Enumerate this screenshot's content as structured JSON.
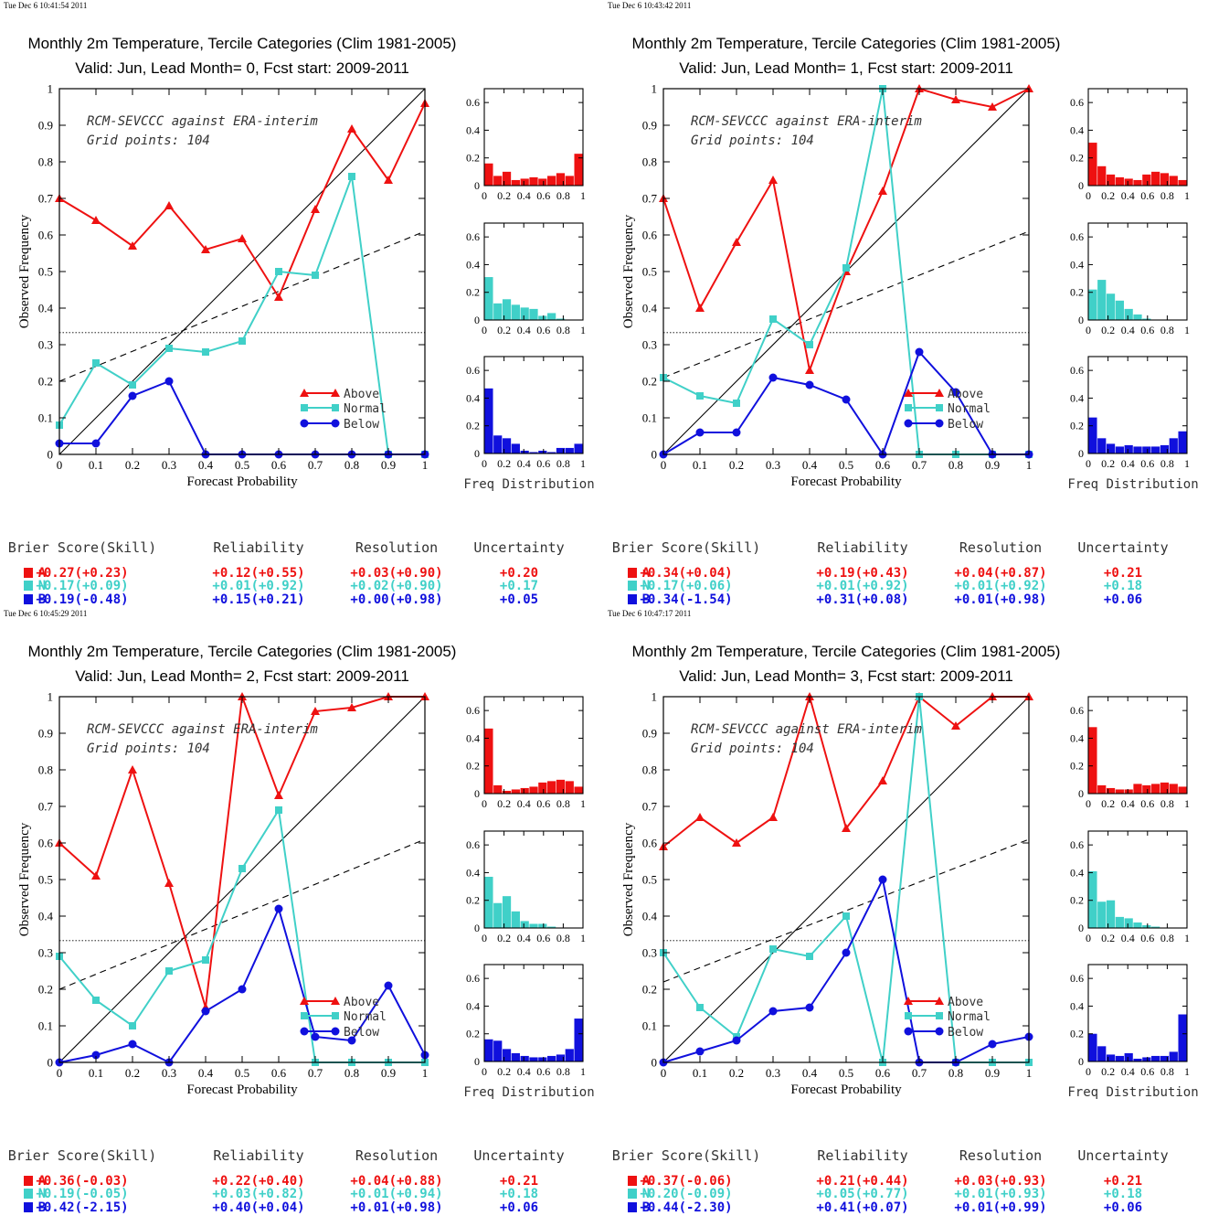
{
  "colors": {
    "above": "#ee1111",
    "normal": "#40d0c8",
    "below": "#1010dd",
    "axis": "#000000"
  },
  "common": {
    "x_axis_label": "Forecast Probability",
    "y_axis_label": "Observed Frequency",
    "freq_label": "Freq Distribution",
    "annotation_line1": "RCM-SEVCCC against ERA-interim",
    "annotation_line2": "Grid points:  104",
    "legend": [
      "Above",
      "Normal",
      "Below"
    ],
    "x_ticks": [
      "0",
      "0.1",
      "0.2",
      "0.3",
      "0.4",
      "0.5",
      "0.6",
      "0.7",
      "0.8",
      "0.9",
      "1"
    ],
    "y_ticks": [
      "0",
      "0.1",
      "0.2",
      "0.3",
      "0.4",
      "0.5",
      "0.6",
      "0.7",
      "0.8",
      "0.9",
      "1"
    ],
    "hist_x_ticks": [
      "0",
      "0.2",
      "0.4",
      "0.6",
      "0.8",
      "1"
    ],
    "hist_y_ticks": [
      "0",
      "0.2",
      "0.4",
      "0.6"
    ],
    "score_headers": [
      "Brier Score(Skill)",
      "Reliability",
      "Resolution",
      "Uncertainty"
    ],
    "score_letters": [
      "A",
      "N",
      "B"
    ]
  },
  "chart_data": [
    {
      "type": "line",
      "timestamp": "Tue Dec  6 10:41:54 2011",
      "title": "Monthly 2m Temperature, Tercile Categories (Clim 1981-2005)",
      "subtitle": "Valid: Jun, Lead Month= 0, Fcst start: 2009-2011",
      "x": [
        0,
        0.1,
        0.2,
        0.3,
        0.4,
        0.5,
        0.6,
        0.7,
        0.8,
        0.9,
        1
      ],
      "xlim": [
        0,
        1
      ],
      "ylim": [
        0,
        1
      ],
      "climatology": 0.333,
      "regression": [
        0.2,
        0.61
      ],
      "series": [
        {
          "name": "Above",
          "values": [
            0.7,
            0.64,
            0.57,
            0.68,
            0.56,
            0.59,
            0.43,
            0.67,
            0.89,
            0.75,
            0.96
          ]
        },
        {
          "name": "Normal",
          "values": [
            0.08,
            0.25,
            0.19,
            0.29,
            0.28,
            0.31,
            0.5,
            0.49,
            0.76,
            0,
            0
          ]
        },
        {
          "name": "Below",
          "values": [
            0.03,
            0.03,
            0.16,
            0.2,
            0,
            0,
            0,
            0,
            0,
            0,
            0
          ]
        }
      ],
      "freq_distribution": {
        "above": [
          0.16,
          0.07,
          0.1,
          0.04,
          0.05,
          0.06,
          0.05,
          0.07,
          0.09,
          0.07,
          0.23
        ],
        "normal": [
          0.31,
          0.12,
          0.15,
          0.11,
          0.09,
          0.08,
          0.03,
          0.05,
          0.01,
          0,
          0
        ],
        "below": [
          0.47,
          0.13,
          0.11,
          0.07,
          0.02,
          0.01,
          0.02,
          0.01,
          0.04,
          0.04,
          0.07
        ]
      },
      "scores": {
        "A": [
          "+0.27(+0.23)",
          "+0.12(+0.55)",
          "+0.03(+0.90)",
          "+0.20"
        ],
        "N": [
          "+0.17(+0.09)",
          "+0.01(+0.92)",
          "+0.02(+0.90)",
          "+0.17"
        ],
        "B": [
          "+0.19(-0.48)",
          "+0.15(+0.21)",
          "+0.00(+0.98)",
          "+0.05"
        ]
      }
    },
    {
      "type": "line",
      "timestamp": "Tue Dec  6 10:43:42 2011",
      "title": "Monthly 2m Temperature, Tercile Categories (Clim 1981-2005)",
      "subtitle": "Valid: Jun, Lead Month= 1, Fcst start: 2009-2011",
      "x": [
        0,
        0.1,
        0.2,
        0.3,
        0.4,
        0.5,
        0.6,
        0.7,
        0.8,
        0.9,
        1
      ],
      "xlim": [
        0,
        1
      ],
      "ylim": [
        0,
        1
      ],
      "climatology": 0.333,
      "regression": [
        0.21,
        0.61
      ],
      "series": [
        {
          "name": "Above",
          "values": [
            0.7,
            0.4,
            0.58,
            0.75,
            0.23,
            0.5,
            0.72,
            1.0,
            0.97,
            0.95,
            1.0
          ]
        },
        {
          "name": "Normal",
          "values": [
            0.21,
            0.16,
            0.14,
            0.37,
            0.3,
            0.51,
            1.0,
            0,
            0,
            0,
            0
          ]
        },
        {
          "name": "Below",
          "values": [
            0,
            0.06,
            0.06,
            0.21,
            0.19,
            0.15,
            0,
            0.28,
            0.17,
            0,
            0
          ]
        }
      ],
      "freq_distribution": {
        "above": [
          0.31,
          0.14,
          0.08,
          0.06,
          0.05,
          0.04,
          0.08,
          0.1,
          0.09,
          0.07,
          0.04
        ],
        "normal": [
          0.22,
          0.29,
          0.19,
          0.14,
          0.08,
          0.04,
          0.01,
          0,
          0,
          0,
          0
        ],
        "below": [
          0.26,
          0.11,
          0.07,
          0.05,
          0.06,
          0.05,
          0.05,
          0.05,
          0.06,
          0.11,
          0.16
        ]
      },
      "scores": {
        "A": [
          "+0.34(+0.04)",
          "+0.19(+0.43)",
          "+0.04(+0.87)",
          "+0.21"
        ],
        "N": [
          "+0.17(+0.06)",
          "+0.01(+0.92)",
          "+0.01(+0.92)",
          "+0.18"
        ],
        "B": [
          "+0.34(-1.54)",
          "+0.31(+0.08)",
          "+0.01(+0.98)",
          "+0.06"
        ]
      }
    },
    {
      "type": "line",
      "timestamp": "Tue Dec  6 10:45:29 2011",
      "title": "Monthly 2m Temperature, Tercile Categories (Clim 1981-2005)",
      "subtitle": "Valid: Jun, Lead Month= 2, Fcst start: 2009-2011",
      "x": [
        0,
        0.1,
        0.2,
        0.3,
        0.4,
        0.5,
        0.6,
        0.7,
        0.8,
        0.9,
        1
      ],
      "xlim": [
        0,
        1
      ],
      "ylim": [
        0,
        1
      ],
      "climatology": 0.333,
      "regression": [
        0.2,
        0.61
      ],
      "series": [
        {
          "name": "Above",
          "values": [
            0.6,
            0.51,
            0.8,
            0.49,
            0.15,
            1.0,
            0.73,
            0.96,
            0.97,
            1.0,
            1.0
          ]
        },
        {
          "name": "Normal",
          "values": [
            0.29,
            0.17,
            0.1,
            0.25,
            0.28,
            0.53,
            0.69,
            0,
            0,
            0,
            0
          ]
        },
        {
          "name": "Below",
          "values": [
            0,
            0.02,
            0.05,
            0,
            0.14,
            0.2,
            0.42,
            0.07,
            0.06,
            0.21,
            0.02
          ]
        }
      ],
      "freq_distribution": {
        "above": [
          0.47,
          0.06,
          0.02,
          0.03,
          0.04,
          0.05,
          0.08,
          0.09,
          0.1,
          0.09,
          0.05
        ],
        "normal": [
          0.37,
          0.18,
          0.23,
          0.12,
          0.05,
          0.03,
          0.03,
          0.01,
          0,
          0,
          0
        ],
        "below": [
          0.16,
          0.15,
          0.09,
          0.06,
          0.04,
          0.03,
          0.03,
          0.04,
          0.05,
          0.09,
          0.31
        ]
      },
      "scores": {
        "A": [
          "+0.36(-0.03)",
          "+0.22(+0.40)",
          "+0.04(+0.88)",
          "+0.21"
        ],
        "N": [
          "+0.19(-0.05)",
          "+0.03(+0.82)",
          "+0.01(+0.94)",
          "+0.18"
        ],
        "B": [
          "+0.42(-2.15)",
          "+0.40(+0.04)",
          "+0.01(+0.98)",
          "+0.06"
        ]
      }
    },
    {
      "type": "line",
      "timestamp": "Tue Dec  6 10:47:17 2011",
      "title": "Monthly 2m Temperature, Tercile Categories (Clim 1981-2005)",
      "subtitle": "Valid: Jun, Lead Month= 3, Fcst start: 2009-2011",
      "x": [
        0,
        0.1,
        0.2,
        0.3,
        0.4,
        0.5,
        0.6,
        0.7,
        0.8,
        0.9,
        1
      ],
      "xlim": [
        0,
        1
      ],
      "ylim": [
        0,
        1
      ],
      "climatology": 0.333,
      "regression": [
        0.22,
        0.61
      ],
      "series": [
        {
          "name": "Above",
          "values": [
            0.59,
            0.67,
            0.6,
            0.67,
            1.0,
            0.64,
            0.77,
            1.0,
            0.92,
            1.0,
            1.0
          ]
        },
        {
          "name": "Normal",
          "values": [
            0.3,
            0.15,
            0.07,
            0.31,
            0.29,
            0.4,
            0,
            1.0,
            0,
            0,
            0
          ]
        },
        {
          "name": "Below",
          "values": [
            0,
            0.03,
            0.06,
            0.14,
            0.15,
            0.3,
            0.5,
            0,
            0,
            0.05,
            0.07
          ]
        }
      ],
      "freq_distribution": {
        "above": [
          0.48,
          0.06,
          0.04,
          0.03,
          0.03,
          0.07,
          0.06,
          0.07,
          0.08,
          0.07,
          0.05
        ],
        "normal": [
          0.41,
          0.19,
          0.2,
          0.08,
          0.07,
          0.04,
          0.02,
          0.01,
          0,
          0,
          0
        ],
        "below": [
          0.2,
          0.11,
          0.05,
          0.04,
          0.06,
          0.02,
          0.03,
          0.04,
          0.04,
          0.07,
          0.34
        ]
      },
      "scores": {
        "A": [
          "+0.37(-0.06)",
          "+0.21(+0.44)",
          "+0.03(+0.93)",
          "+0.21"
        ],
        "N": [
          "+0.20(-0.09)",
          "+0.05(+0.77)",
          "+0.01(+0.93)",
          "+0.18"
        ],
        "B": [
          "+0.44(-2.30)",
          "+0.41(+0.07)",
          "+0.01(+0.99)",
          "+0.06"
        ]
      }
    }
  ]
}
